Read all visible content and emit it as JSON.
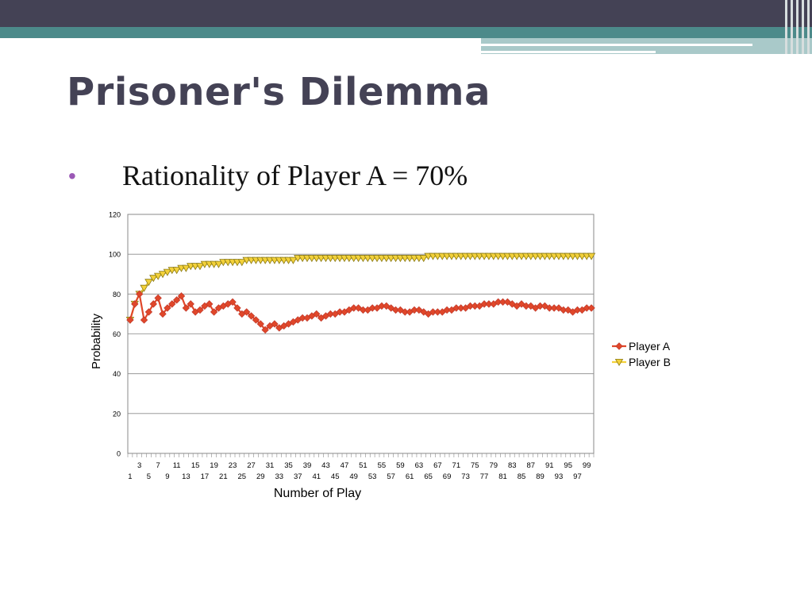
{
  "slide": {
    "title": "Prisoner's Dilemma",
    "bullet": "Rationality of Player A = 70%"
  },
  "colors": {
    "header_dark": "#444255",
    "header_teal": "#4c8a8a",
    "bullet": "#9b59b6",
    "player_a": "#e0472a",
    "player_b": "#f3d13a"
  },
  "chart_data": {
    "type": "line",
    "xlabel": "Number of Play",
    "ylabel": "Probability",
    "ylim": [
      0,
      120
    ],
    "yticks": [
      0,
      20,
      40,
      60,
      80,
      100,
      120
    ],
    "xlim": [
      1,
      100
    ],
    "grid": true,
    "legend": "right",
    "series": [
      {
        "name": "Player A",
        "marker": "diamond",
        "values": [
          67,
          75,
          80,
          67,
          71,
          75,
          78,
          70,
          73,
          75,
          77,
          79,
          73,
          75,
          71,
          72,
          74,
          75,
          71,
          73,
          74,
          75,
          76,
          73,
          70,
          71,
          69,
          67,
          65,
          62,
          64,
          65,
          63,
          64,
          65,
          66,
          67,
          68,
          68,
          69,
          70,
          68,
          69,
          70,
          70,
          71,
          71,
          72,
          73,
          73,
          72,
          72,
          73,
          73,
          74,
          74,
          73,
          72,
          72,
          71,
          71,
          72,
          72,
          71,
          70,
          71,
          71,
          71,
          72,
          72,
          73,
          73,
          73,
          74,
          74,
          74,
          75,
          75,
          75,
          76,
          76,
          76,
          75,
          74,
          75,
          74,
          74,
          73,
          74,
          74,
          73,
          73,
          73,
          72,
          72,
          71,
          72,
          72,
          73,
          73
        ]
      },
      {
        "name": "Player B",
        "marker": "triangle-down",
        "values": [
          67,
          75,
          80,
          83,
          86,
          88,
          89,
          90,
          91,
          92,
          92,
          93,
          93,
          94,
          94,
          94,
          95,
          95,
          95,
          95,
          96,
          96,
          96,
          96,
          96,
          97,
          97,
          97,
          97,
          97,
          97,
          97,
          97,
          97,
          97,
          97,
          98,
          98,
          98,
          98,
          98,
          98,
          98,
          98,
          98,
          98,
          98,
          98,
          98,
          98,
          98,
          98,
          98,
          98,
          98,
          98,
          98,
          98,
          98,
          98,
          98,
          98,
          98,
          98,
          99,
          99,
          99,
          99,
          99,
          99,
          99,
          99,
          99,
          99,
          99,
          99,
          99,
          99,
          99,
          99,
          99,
          99,
          99,
          99,
          99,
          99,
          99,
          99,
          99,
          99,
          99,
          99,
          99,
          99,
          99,
          99,
          99,
          99,
          99,
          99
        ]
      }
    ]
  }
}
